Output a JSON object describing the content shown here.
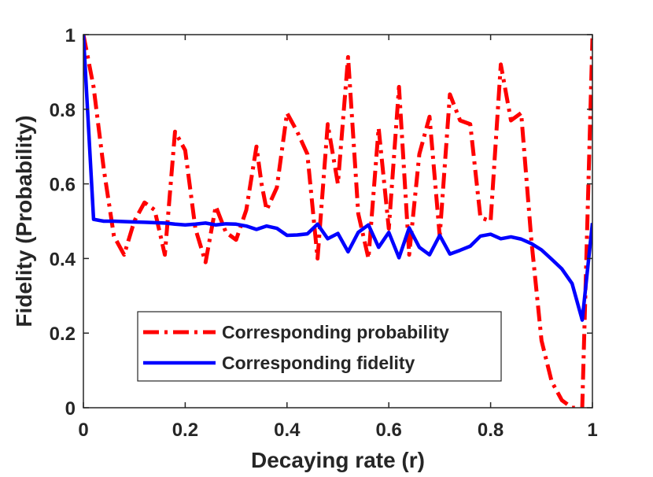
{
  "chart_data": {
    "type": "line",
    "title": "",
    "xlabel": "Decaying rate (r)",
    "ylabel": "Fidelity (Probability)",
    "xlim": [
      0,
      1
    ],
    "ylim": [
      0,
      1
    ],
    "xticks": [
      0,
      0.2,
      0.4,
      0.6,
      0.8,
      1
    ],
    "xtick_labels": [
      "0",
      "0.2",
      "0.4",
      "0.6",
      "0.8",
      "1"
    ],
    "yticks": [
      0,
      0.2,
      0.4,
      0.6,
      0.8,
      1
    ],
    "ytick_labels": [
      "0",
      "0.2",
      "0.4",
      "0.6",
      "0.8",
      "1"
    ],
    "grid": false,
    "legend_position": "bottom-left",
    "series": [
      {
        "name": "Corresponding probability",
        "color": "#ff0000",
        "style": "dash-dot",
        "x": [
          0,
          0.02,
          0.04,
          0.06,
          0.08,
          0.1,
          0.12,
          0.14,
          0.16,
          0.18,
          0.2,
          0.22,
          0.24,
          0.26,
          0.28,
          0.3,
          0.32,
          0.34,
          0.35,
          0.36,
          0.38,
          0.4,
          0.42,
          0.44,
          0.46,
          0.48,
          0.5,
          0.52,
          0.54,
          0.56,
          0.58,
          0.6,
          0.62,
          0.64,
          0.66,
          0.68,
          0.7,
          0.72,
          0.74,
          0.76,
          0.78,
          0.8,
          0.82,
          0.84,
          0.86,
          0.88,
          0.9,
          0.92,
          0.94,
          0.96,
          0.98,
          1.0
        ],
        "y": [
          1.0,
          0.86,
          0.64,
          0.46,
          0.41,
          0.5,
          0.55,
          0.53,
          0.41,
          0.74,
          0.69,
          0.48,
          0.39,
          0.54,
          0.47,
          0.45,
          0.53,
          0.7,
          0.6,
          0.53,
          0.59,
          0.79,
          0.74,
          0.68,
          0.4,
          0.76,
          0.6,
          0.94,
          0.52,
          0.4,
          0.75,
          0.48,
          0.86,
          0.41,
          0.68,
          0.78,
          0.46,
          0.84,
          0.77,
          0.76,
          0.51,
          0.5,
          0.92,
          0.77,
          0.79,
          0.45,
          0.18,
          0.07,
          0.02,
          0.0,
          0.0,
          0.99
        ]
      },
      {
        "name": "Corresponding fidelity",
        "color": "#0000ff",
        "style": "solid",
        "x": [
          0,
          0.02,
          0.04,
          0.06,
          0.08,
          0.1,
          0.12,
          0.14,
          0.16,
          0.18,
          0.2,
          0.22,
          0.24,
          0.26,
          0.28,
          0.3,
          0.32,
          0.34,
          0.36,
          0.38,
          0.4,
          0.42,
          0.44,
          0.46,
          0.48,
          0.5,
          0.52,
          0.54,
          0.56,
          0.58,
          0.6,
          0.62,
          0.64,
          0.66,
          0.68,
          0.7,
          0.72,
          0.74,
          0.76,
          0.78,
          0.8,
          0.82,
          0.84,
          0.86,
          0.88,
          0.9,
          0.92,
          0.94,
          0.96,
          0.98,
          1.0
        ],
        "y": [
          1.0,
          0.505,
          0.5,
          0.5,
          0.499,
          0.498,
          0.497,
          0.496,
          0.495,
          0.492,
          0.49,
          0.492,
          0.495,
          0.49,
          0.493,
          0.492,
          0.487,
          0.478,
          0.487,
          0.481,
          0.462,
          0.463,
          0.466,
          0.492,
          0.453,
          0.467,
          0.418,
          0.47,
          0.49,
          0.43,
          0.47,
          0.402,
          0.482,
          0.43,
          0.41,
          0.462,
          0.412,
          0.422,
          0.433,
          0.46,
          0.465,
          0.453,
          0.458,
          0.452,
          0.44,
          0.423,
          0.398,
          0.372,
          0.333,
          0.235,
          0.495
        ]
      }
    ]
  }
}
